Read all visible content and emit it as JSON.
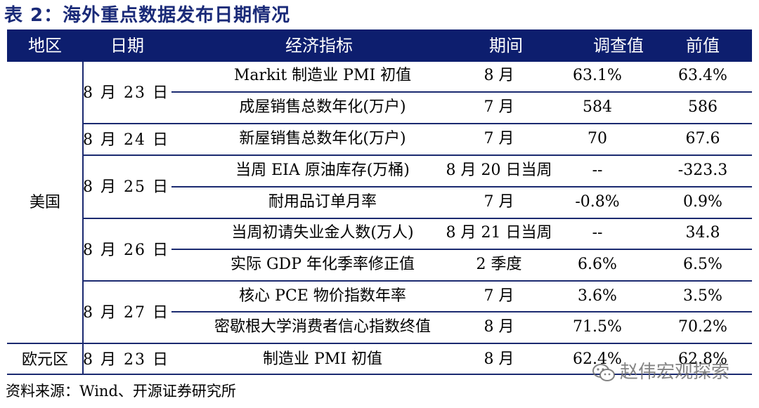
{
  "title": "表 2：海外重点数据发布日期情况",
  "headers": [
    "地区",
    "日期",
    "经济指标",
    "期间",
    "调查值",
    "前值"
  ],
  "regions": [
    "美国",
    "欧元区"
  ],
  "dates": [
    "8 月 23 日",
    "8 月 24 日",
    "8 月 25 日",
    "8 月 26 日",
    "8 月 27 日",
    "8 月 23 日"
  ],
  "rows": [
    {
      "indicator": "Markit 制造业 PMI 初值",
      "period": "8 月",
      "survey": "63.1%",
      "previous": "63.4%"
    },
    {
      "indicator": "成屋销售总数年化(万户)",
      "period": "7 月",
      "survey": "584",
      "previous": "586"
    },
    {
      "indicator": "新屋销售总数年化(万户)",
      "period": "7 月",
      "survey": "70",
      "previous": "67.6"
    },
    {
      "indicator": "当周 EIA 原油库存(万桶)",
      "period": "8 月 20 日当周",
      "survey": "--",
      "previous": "-323.3"
    },
    {
      "indicator": "耐用品订单月率",
      "period": "7 月",
      "survey": "-0.8%",
      "previous": "0.9%"
    },
    {
      "indicator": "当周初请失业金人数(万人)",
      "period": "8 月 21 日当周",
      "survey": "--",
      "previous": "34.8"
    },
    {
      "indicator": "实际 GDP 年化季率修正值",
      "period": "2 季度",
      "survey": "6.6%",
      "previous": "6.5%"
    },
    {
      "indicator": "核心 PCE 物价指数年率",
      "period": "7 月",
      "survey": "3.6%",
      "previous": "3.5%"
    },
    {
      "indicator": "密歇根大学消费者信心指数终值",
      "period": "8 月",
      "survey": "71.5%",
      "previous": "70.2%"
    },
    {
      "indicator": "制造业 PMI 初值",
      "period": "8 月",
      "survey": "62.4%",
      "previous": "62.8%"
    }
  ],
  "source": "资料来源：Wind、开源证券研究所",
  "watermark": "赵伟宏观探索",
  "colors": {
    "header_bg": "#0d1e6e",
    "title": "#1a2a78",
    "rule": "#1b2a70"
  }
}
